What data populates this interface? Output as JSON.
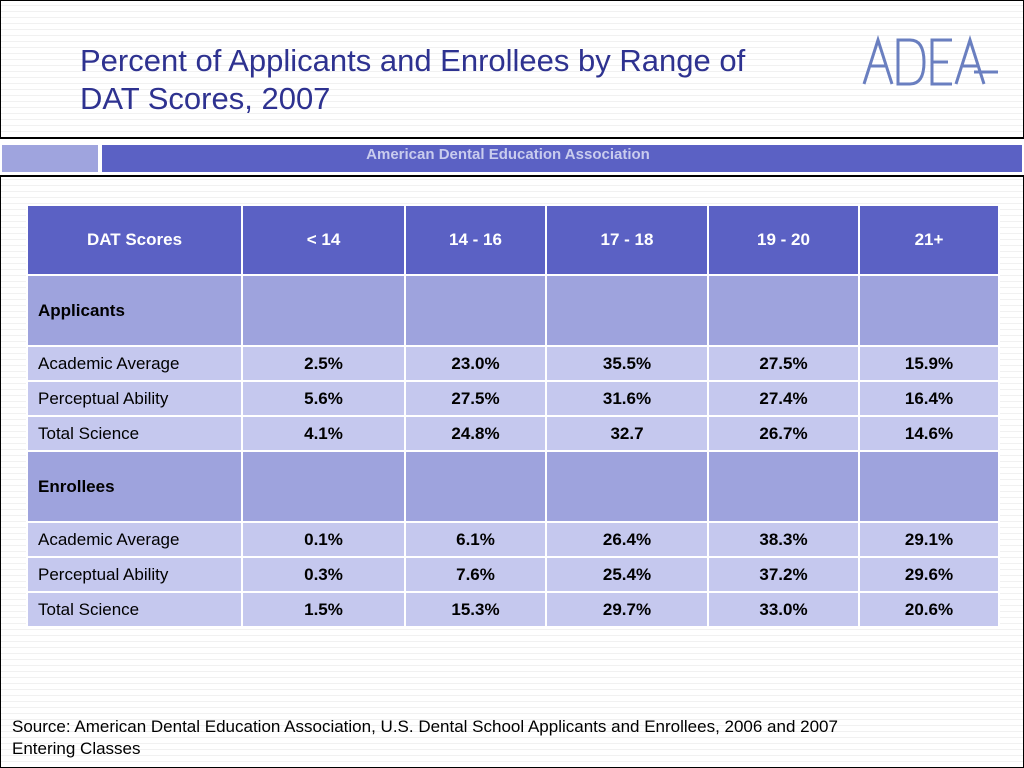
{
  "title_lines": [
    "Percent of Applicants and Enrollees by Range of",
    "DAT Scores, 2007"
  ],
  "logo_text": "ADEA",
  "band_text": "American Dental Education Association",
  "table": {
    "header": [
      "DAT Scores",
      "< 14",
      "14 - 16",
      "17 - 18",
      "19 - 20",
      "21+"
    ],
    "sections": [
      {
        "label": "Applicants",
        "rows": [
          {
            "label": "Academic Average",
            "values": [
              "2.5%",
              "23.0%",
              "35.5%",
              "27.5%",
              "15.9%"
            ]
          },
          {
            "label": "Perceptual Ability",
            "values": [
              "5.6%",
              "27.5%",
              "31.6%",
              "27.4%",
              "16.4%"
            ]
          },
          {
            "label": "Total Science",
            "values": [
              "4.1%",
              "24.8%",
              "32.7",
              "26.7%",
              "14.6%"
            ]
          }
        ]
      },
      {
        "label": "Enrollees",
        "rows": [
          {
            "label": "Academic Average",
            "values": [
              "0.1%",
              "6.1%",
              "26.4%",
              "38.3%",
              "29.1%"
            ]
          },
          {
            "label": "Perceptual Ability",
            "values": [
              "0.3%",
              "7.6%",
              "25.4%",
              "37.2%",
              "29.6%"
            ]
          },
          {
            "label": "Total Science",
            "values": [
              "1.5%",
              "15.3%",
              "29.7%",
              "33.0%",
              "20.6%"
            ]
          }
        ]
      }
    ]
  },
  "footer_lines": [
    "Source: American Dental Education Association,  U.S. Dental School Applicants and Enrollees, 2006 and 2007",
    "Entering Classes"
  ],
  "colors": {
    "title": "#2e3290",
    "header_bg": "#5b61c4",
    "section_bg": "#9ea3dd",
    "row_bg": "#c5c8ee",
    "logo": "#6a7fc0"
  }
}
